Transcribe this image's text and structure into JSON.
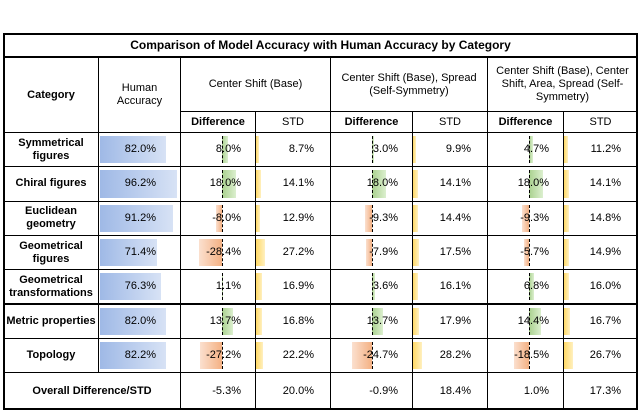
{
  "title": "Comparison of Model Accuracy with Human Accuracy by Category",
  "header": {
    "category": "Category",
    "human": "Human Accuracy",
    "groups": [
      "Center Shift (Base)",
      "Center Shift (Base), Spread (Self-Symmetry)",
      "Center Shift (Base), Center Shift, Area, Spread (Self-Symmetry)"
    ],
    "sub": [
      "Difference",
      "STD"
    ]
  },
  "rows": [
    {
      "category": "Symmetrical figures",
      "human": "82.0%",
      "cells": [
        [
          "8.0%",
          "8.7%"
        ],
        [
          "3.0%",
          "9.9%"
        ],
        [
          "4.7%",
          "11.2%"
        ]
      ]
    },
    {
      "category": "Chiral figures",
      "human": "96.2%",
      "cells": [
        [
          "18.0%",
          "14.1%"
        ],
        [
          "18.0%",
          "14.1%"
        ],
        [
          "18.0%",
          "14.1%"
        ]
      ]
    },
    {
      "category": "Euclidean geometry",
      "human": "91.2%",
      "cells": [
        [
          "-8.0%",
          "12.9%"
        ],
        [
          "-9.3%",
          "14.4%"
        ],
        [
          "-9.3%",
          "14.8%"
        ]
      ]
    },
    {
      "category": "Geometrical figures",
      "human": "71.4%",
      "cells": [
        [
          "-28.4%",
          "27.2%"
        ],
        [
          "-7.9%",
          "17.5%"
        ],
        [
          "-5.7%",
          "14.9%"
        ]
      ]
    },
    {
      "category": "Geometrical transformations",
      "human": "76.3%",
      "cells": [
        [
          "1.1%",
          "16.9%"
        ],
        [
          "3.6%",
          "16.1%"
        ],
        [
          "6.8%",
          "16.0%"
        ]
      ]
    },
    {
      "category": "Metric properties",
      "human": "82.0%",
      "cells": [
        [
          "13.7%",
          "16.8%"
        ],
        [
          "13.7%",
          "17.9%"
        ],
        [
          "14.4%",
          "16.7%"
        ]
      ]
    },
    {
      "category": "Topology",
      "human": "82.2%",
      "cells": [
        [
          "-27.2%",
          "22.2%"
        ],
        [
          "-24.7%",
          "28.2%"
        ],
        [
          "-18.5%",
          "26.7%"
        ]
      ]
    }
  ],
  "overall": {
    "label": "Overall Difference/STD",
    "cells": [
      [
        "-5.3%",
        "20.0%"
      ],
      [
        "-0.9%",
        "18.4%"
      ],
      [
        "1.0%",
        "17.3%"
      ]
    ]
  }
}
